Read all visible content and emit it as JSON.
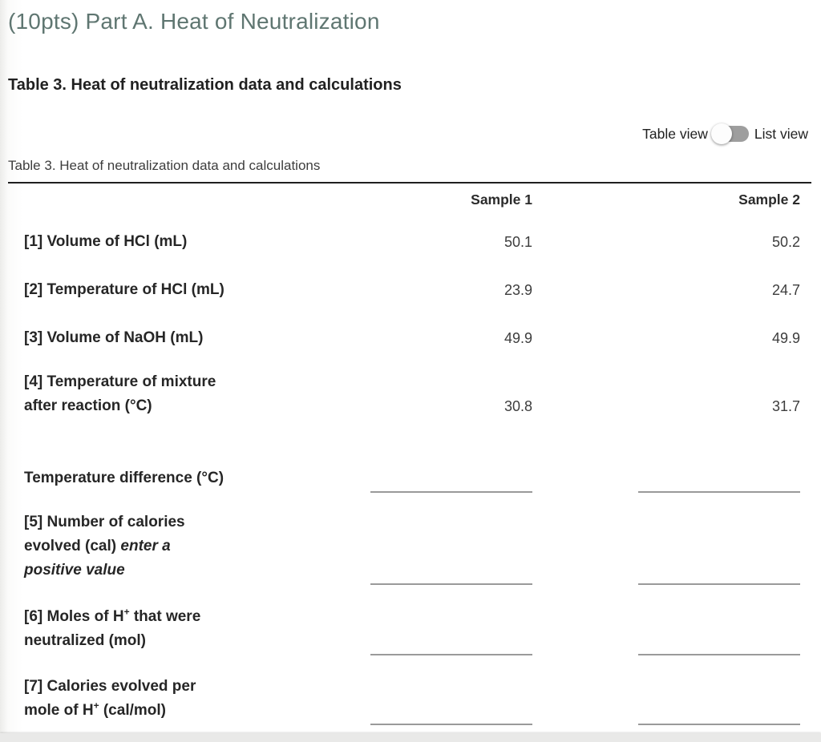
{
  "page": {
    "title": "(10pts) Part A. Heat of Neutralization",
    "section_heading": "Table 3. Heat of neutralization data and calculations"
  },
  "view_toggle": {
    "left_label": "Table view",
    "right_label": "List view",
    "selected": "Table view"
  },
  "table": {
    "caption": "Table 3. Heat of neutralization data and calculations",
    "columns": [
      "Sample 1",
      "Sample 2"
    ],
    "rows": [
      {
        "type": "value",
        "segments": [
          {
            "t": "[1] Volume of HCl (mL)"
          }
        ],
        "values": [
          "50.1",
          "50.2"
        ]
      },
      {
        "type": "value",
        "segments": [
          {
            "t": "[2] Temperature of HCl (mL)"
          }
        ],
        "values": [
          "23.9",
          "24.7"
        ]
      },
      {
        "type": "value",
        "segments": [
          {
            "t": "[3] Volume of NaOH (mL)"
          }
        ],
        "values": [
          "49.9",
          "49.9"
        ]
      },
      {
        "type": "value",
        "segments": [
          {
            "t": "[4] Temperature of mixture"
          },
          {
            "br": true
          },
          {
            "t": "after reaction (°C)"
          }
        ],
        "values": [
          "30.8",
          "31.7"
        ]
      },
      {
        "type": "input",
        "segments": [
          {
            "t": "Temperature difference (°C)"
          }
        ],
        "values": [
          "",
          ""
        ]
      },
      {
        "type": "input",
        "segments": [
          {
            "t": "[5] Number of calories"
          },
          {
            "br": true
          },
          {
            "t": "evolved (cal) "
          },
          {
            "t": "enter a",
            "i": true
          },
          {
            "br": true
          },
          {
            "t": "positive value",
            "i": true
          }
        ],
        "values": [
          "",
          ""
        ]
      },
      {
        "type": "input",
        "segments": [
          {
            "t": "[6] Moles of H"
          },
          {
            "t": "+",
            "sup": true
          },
          {
            "t": " that were"
          },
          {
            "br": true
          },
          {
            "t": "neutralized (mol)"
          }
        ],
        "values": [
          "",
          ""
        ]
      },
      {
        "type": "input",
        "segments": [
          {
            "t": "[7] Calories evolved per"
          },
          {
            "br": true
          },
          {
            "t": "mole of H"
          },
          {
            "t": "+",
            "sup": true
          },
          {
            "t": " (cal/mol)"
          }
        ],
        "values": [
          "",
          ""
        ]
      }
    ]
  },
  "colors": {
    "heading_teal": "#5f7671",
    "text_dark": "#212121",
    "table_border": "#1f1f1f",
    "blank_line": "#9a9a9a",
    "toggle_track": "#9e9e9e",
    "bottom_strip": "#e9e9e8"
  }
}
